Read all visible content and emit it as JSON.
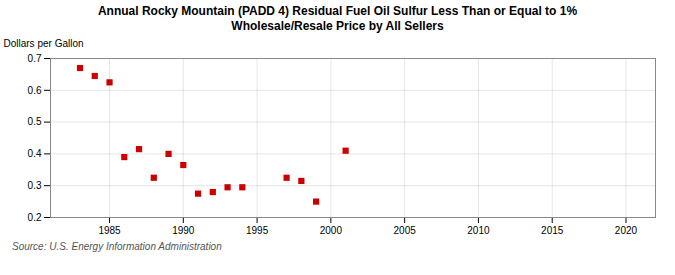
{
  "chart_data": {
    "type": "scatter",
    "title": "Annual Rocky Mountain (PADD 4) Residual Fuel Oil Sulfur Less Than or Equal to 1%\nWholesale/Resale Price by All Sellers",
    "ylabel": "Dollars per Gallon",
    "annotations": [
      "Source: U.S. Energy Information Administration"
    ],
    "x": [
      1983,
      1984,
      1985,
      1986,
      1987,
      1988,
      1989,
      1990,
      1991,
      1992,
      1993,
      1994,
      1997,
      1998,
      1999,
      2001
    ],
    "values": [
      0.67,
      0.645,
      0.625,
      0.39,
      0.415,
      0.325,
      0.4,
      0.365,
      0.275,
      0.28,
      0.295,
      0.295,
      0.325,
      0.315,
      0.25,
      0.41
    ],
    "color": "#cc0000",
    "marker": "square",
    "xlim": [
      1981,
      2022
    ],
    "ylim": [
      0.2,
      0.7
    ],
    "xticks": [
      1985,
      1990,
      1995,
      2000,
      2005,
      2010,
      2015,
      2020
    ],
    "yticks": [
      0.2,
      0.3,
      0.4,
      0.5,
      0.6,
      0.7
    ],
    "grid": true
  }
}
